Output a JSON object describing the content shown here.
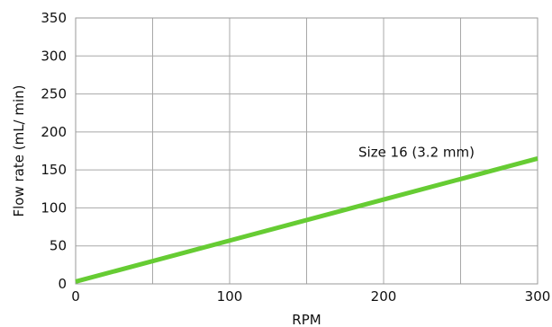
{
  "chart_data": {
    "type": "line",
    "title": "",
    "xlabel": "RPM",
    "ylabel": "Flow rate (mL/ min)",
    "xlim": [
      0,
      300
    ],
    "ylim": [
      0,
      350
    ],
    "xticks": [
      0,
      100,
      200,
      300
    ],
    "yticks": [
      0,
      50,
      100,
      150,
      200,
      250,
      300,
      350
    ],
    "x_gridlines": [
      0,
      50,
      100,
      150,
      200,
      250,
      300
    ],
    "grid": true,
    "legend": "none",
    "series": [
      {
        "name": "Size 16 (3.2 mm)",
        "color": "#66cc33",
        "x": [
          0,
          300
        ],
        "y": [
          3,
          165
        ]
      }
    ],
    "annotations": [
      {
        "text": "Size 16 (3.2 mm)",
        "x": 200,
        "y": 165
      }
    ]
  }
}
